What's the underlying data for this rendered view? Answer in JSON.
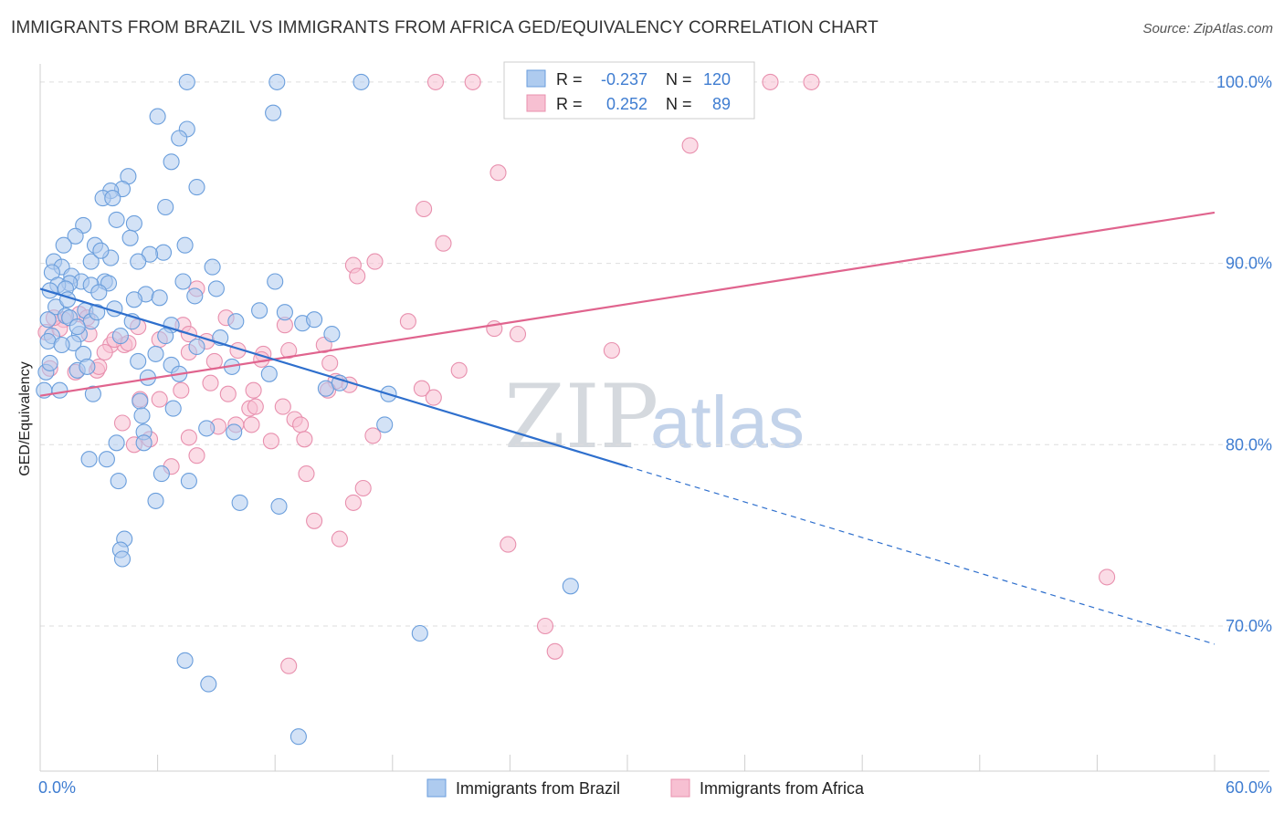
{
  "header": {
    "title": "IMMIGRANTS FROM BRAZIL VS IMMIGRANTS FROM AFRICA GED/EQUIVALENCY CORRELATION CHART",
    "source": "Source: ZipAtlas.com"
  },
  "watermark": {
    "zip": "ZIP",
    "atlas": "atlas"
  },
  "legend_box": {
    "rows": [
      {
        "r_label": "R =",
        "r_value": "-0.237",
        "n_label": "N =",
        "n_value": "120"
      },
      {
        "r_label": "R =",
        "r_value": "0.252",
        "n_label": "N =",
        "n_value": "89"
      }
    ]
  },
  "colors": {
    "brazil_fill": "#aecbef",
    "brazil_stroke": "#6a9edc",
    "brazil_line": "#2e6fcd",
    "africa_fill": "#f7c0d2",
    "africa_stroke": "#e890ae",
    "africa_line": "#e0648e",
    "tick_text": "#3f7dd1",
    "grid": "#dddddd"
  },
  "chart_data": {
    "type": "scatter",
    "title": "IMMIGRANTS FROM BRAZIL VS IMMIGRANTS FROM AFRICA GED/EQUIVALENCY CORRELATION CHART",
    "xlabel": "",
    "ylabel": "GED/Equivalency",
    "xlim": [
      0,
      60
    ],
    "ylim": [
      62,
      101
    ],
    "x_tick_labels": [
      "0.0%",
      "60.0%"
    ],
    "y_ticks": [
      70,
      80,
      90,
      100
    ],
    "y_tick_labels": [
      "70.0%",
      "80.0%",
      "90.0%",
      "100.0%"
    ],
    "grid": true,
    "legend_position": "bottom",
    "series": [
      {
        "name": "Immigrants from Brazil",
        "r": -0.237,
        "n": 120,
        "trend": {
          "x_start": 0,
          "y_start": 88.6,
          "x_solid_end": 30,
          "y_solid_end": 78.8,
          "x_dash_end": 60,
          "y_dash_end": 69.0
        },
        "points": [
          [
            7.5,
            100
          ],
          [
            12.1,
            100
          ],
          [
            16.4,
            100
          ],
          [
            6.0,
            98.1
          ],
          [
            11.9,
            98.3
          ],
          [
            7.5,
            97.4
          ],
          [
            7.1,
            96.9
          ],
          [
            6.7,
            95.6
          ],
          [
            4.5,
            94.8
          ],
          [
            4.2,
            94.1
          ],
          [
            3.6,
            94.0
          ],
          [
            3.2,
            93.6
          ],
          [
            3.7,
            93.6
          ],
          [
            8.0,
            94.2
          ],
          [
            6.4,
            93.1
          ],
          [
            2.2,
            92.1
          ],
          [
            4.8,
            92.2
          ],
          [
            3.9,
            92.4
          ],
          [
            1.8,
            91.5
          ],
          [
            4.6,
            91.4
          ],
          [
            1.2,
            91.0
          ],
          [
            2.8,
            91.0
          ],
          [
            7.4,
            91.0
          ],
          [
            6.3,
            90.6
          ],
          [
            5.6,
            90.5
          ],
          [
            3.6,
            90.3
          ],
          [
            2.6,
            90.1
          ],
          [
            5.0,
            90.1
          ],
          [
            0.7,
            90.1
          ],
          [
            1.1,
            89.8
          ],
          [
            0.6,
            89.5
          ],
          [
            1.6,
            89.3
          ],
          [
            8.8,
            89.8
          ],
          [
            7.3,
            89.0
          ],
          [
            3.3,
            89.0
          ],
          [
            2.1,
            89.0
          ],
          [
            1.5,
            88.9
          ],
          [
            0.9,
            88.8
          ],
          [
            1.3,
            88.6
          ],
          [
            0.5,
            88.5
          ],
          [
            5.4,
            88.3
          ],
          [
            6.1,
            88.1
          ],
          [
            7.9,
            88.2
          ],
          [
            2.6,
            88.8
          ],
          [
            3.5,
            88.9
          ],
          [
            0.8,
            87.6
          ],
          [
            1.3,
            87.1
          ],
          [
            1.5,
            87.0
          ],
          [
            2.3,
            87.4
          ],
          [
            2.6,
            86.8
          ],
          [
            3.8,
            87.5
          ],
          [
            4.7,
            86.8
          ],
          [
            6.7,
            86.6
          ],
          [
            12.5,
            87.3
          ],
          [
            11.2,
            87.4
          ],
          [
            13.4,
            86.7
          ],
          [
            14.0,
            86.9
          ],
          [
            0.6,
            86.0
          ],
          [
            2.0,
            86.1
          ],
          [
            4.1,
            86.0
          ],
          [
            6.4,
            86.0
          ],
          [
            9.2,
            85.9
          ],
          [
            1.7,
            85.6
          ],
          [
            14.9,
            86.1
          ],
          [
            5.0,
            84.6
          ],
          [
            6.7,
            84.4
          ],
          [
            9.8,
            84.3
          ],
          [
            1.9,
            84.1
          ],
          [
            11.7,
            83.9
          ],
          [
            5.5,
            83.7
          ],
          [
            14.6,
            83.1
          ],
          [
            2.7,
            82.8
          ],
          [
            5.1,
            82.4
          ],
          [
            17.8,
            82.8
          ],
          [
            5.2,
            81.6
          ],
          [
            5.3,
            80.7
          ],
          [
            5.3,
            80.1
          ],
          [
            9.9,
            80.7
          ],
          [
            8.5,
            80.9
          ],
          [
            17.6,
            81.1
          ],
          [
            3.9,
            80.1
          ],
          [
            2.5,
            79.2
          ],
          [
            3.4,
            79.2
          ],
          [
            6.2,
            78.4
          ],
          [
            7.6,
            78.0
          ],
          [
            4.0,
            78.0
          ],
          [
            5.9,
            76.9
          ],
          [
            10.2,
            76.8
          ],
          [
            12.2,
            76.6
          ],
          [
            4.3,
            74.8
          ],
          [
            4.1,
            74.2
          ],
          [
            4.2,
            73.7
          ],
          [
            27.1,
            72.2
          ],
          [
            19.4,
            69.6
          ],
          [
            7.4,
            68.1
          ],
          [
            8.6,
            66.8
          ],
          [
            13.2,
            63.9
          ],
          [
            0.4,
            85.7
          ],
          [
            0.3,
            84.0
          ],
          [
            1.0,
            83.0
          ],
          [
            1.9,
            86.5
          ],
          [
            8.0,
            85.4
          ],
          [
            10.0,
            86.8
          ],
          [
            2.9,
            87.3
          ],
          [
            3.0,
            88.4
          ],
          [
            1.4,
            88.0
          ],
          [
            0.4,
            86.9
          ],
          [
            2.2,
            85.0
          ],
          [
            6.8,
            82.0
          ],
          [
            3.1,
            90.7
          ],
          [
            9.0,
            88.6
          ],
          [
            12.0,
            89.0
          ],
          [
            4.8,
            88.0
          ],
          [
            0.5,
            84.5
          ],
          [
            2.4,
            84.3
          ],
          [
            15.3,
            83.4
          ],
          [
            1.1,
            85.5
          ],
          [
            0.2,
            83.0
          ],
          [
            5.9,
            85.0
          ],
          [
            7.1,
            83.9
          ]
        ]
      },
      {
        "name": "Immigrants from Africa",
        "r": 0.252,
        "n": 89,
        "trend": {
          "x_start": 0,
          "y_start": 82.7,
          "x_end": 60,
          "y_end": 92.8
        },
        "points": [
          [
            20.2,
            100
          ],
          [
            22.1,
            100
          ],
          [
            24.6,
            100
          ],
          [
            29.3,
            99.8
          ],
          [
            35.6,
            100
          ],
          [
            37.3,
            100
          ],
          [
            39.4,
            100
          ],
          [
            33.2,
            96.5
          ],
          [
            23.4,
            95.0
          ],
          [
            19.6,
            93.0
          ],
          [
            20.6,
            91.1
          ],
          [
            17.1,
            90.1
          ],
          [
            16.0,
            89.9
          ],
          [
            16.2,
            89.3
          ],
          [
            8.0,
            88.6
          ],
          [
            9.5,
            87.0
          ],
          [
            12.5,
            86.6
          ],
          [
            18.8,
            86.8
          ],
          [
            23.2,
            86.4
          ],
          [
            24.4,
            86.1
          ],
          [
            7.3,
            86.6
          ],
          [
            6.1,
            85.8
          ],
          [
            7.6,
            86.1
          ],
          [
            14.5,
            85.5
          ],
          [
            3.6,
            85.5
          ],
          [
            4.3,
            85.5
          ],
          [
            3.3,
            85.1
          ],
          [
            8.5,
            85.7
          ],
          [
            10.1,
            85.2
          ],
          [
            11.4,
            85.0
          ],
          [
            12.7,
            85.2
          ],
          [
            14.8,
            84.5
          ],
          [
            29.2,
            85.2
          ],
          [
            21.4,
            84.1
          ],
          [
            8.9,
            84.6
          ],
          [
            2.9,
            84.1
          ],
          [
            1.8,
            84.0
          ],
          [
            15.1,
            83.5
          ],
          [
            15.8,
            83.3
          ],
          [
            19.5,
            83.1
          ],
          [
            14.7,
            83.0
          ],
          [
            20.1,
            82.6
          ],
          [
            7.2,
            83.0
          ],
          [
            9.6,
            82.8
          ],
          [
            10.9,
            83.0
          ],
          [
            5.1,
            82.5
          ],
          [
            6.1,
            82.5
          ],
          [
            10.7,
            82.0
          ],
          [
            11.0,
            82.1
          ],
          [
            12.4,
            82.1
          ],
          [
            13.0,
            81.4
          ],
          [
            13.3,
            81.1
          ],
          [
            10.0,
            81.1
          ],
          [
            10.8,
            81.1
          ],
          [
            9.1,
            81.0
          ],
          [
            4.2,
            81.2
          ],
          [
            5.6,
            80.3
          ],
          [
            7.6,
            80.4
          ],
          [
            11.8,
            80.2
          ],
          [
            13.5,
            80.3
          ],
          [
            17.0,
            80.5
          ],
          [
            4.8,
            80.0
          ],
          [
            8.0,
            79.4
          ],
          [
            6.7,
            78.8
          ],
          [
            13.6,
            78.4
          ],
          [
            16.5,
            77.6
          ],
          [
            16.0,
            76.8
          ],
          [
            14.0,
            75.8
          ],
          [
            15.3,
            74.8
          ],
          [
            23.9,
            74.5
          ],
          [
            54.5,
            72.7
          ],
          [
            25.8,
            70.0
          ],
          [
            26.3,
            68.6
          ],
          [
            12.7,
            67.8
          ],
          [
            0.3,
            86.2
          ],
          [
            0.5,
            84.2
          ],
          [
            1.2,
            86.9
          ],
          [
            2.0,
            87.2
          ],
          [
            1.0,
            86.4
          ],
          [
            2.4,
            87.0
          ],
          [
            2.5,
            86.1
          ],
          [
            0.7,
            87.0
          ],
          [
            3.0,
            84.3
          ],
          [
            3.8,
            85.8
          ],
          [
            4.5,
            85.6
          ],
          [
            5.0,
            86.5
          ],
          [
            7.6,
            85.1
          ],
          [
            8.7,
            83.4
          ],
          [
            11.3,
            84.7
          ]
        ]
      }
    ]
  },
  "bottom_legend": {
    "items": [
      "Immigrants from Brazil",
      "Immigrants from Africa"
    ]
  }
}
